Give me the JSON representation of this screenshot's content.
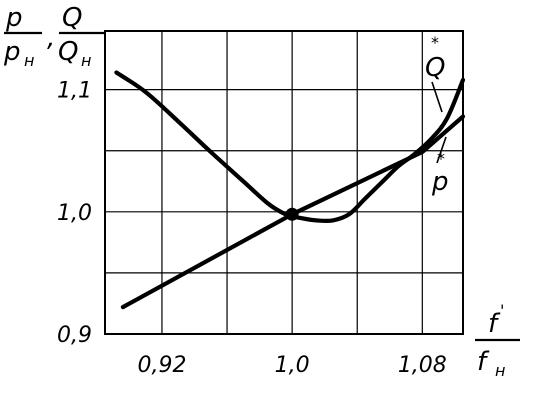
{
  "chart_data": {
    "type": "line",
    "title": "",
    "x": {
      "label_num": "f",
      "label_den_main": "f",
      "label_den_sub": "н",
      "range": [
        0.885,
        1.105
      ],
      "tick_values": [
        0.92,
        1.0,
        1.08
      ],
      "tick_labels": [
        "0,92",
        "1,0",
        "1,08"
      ],
      "gridlines": [
        0.92,
        0.96,
        1.0,
        1.04,
        1.08
      ]
    },
    "y": {
      "label_p_num": "p",
      "label_p_den_main": "p",
      "label_p_den_sub": "н",
      "separator": ",",
      "label_q_num": "Q",
      "label_q_den_main": "Q",
      "label_q_den_sub": "н",
      "range": [
        0.9,
        1.148
      ],
      "tick_values": [
        0.9,
        1.0,
        1.1
      ],
      "tick_labels": [
        "0,9",
        "1,0",
        "1,1"
      ],
      "gridlines": [
        0.9,
        0.95,
        1.0,
        1.05,
        1.1
      ]
    },
    "grid": true,
    "series": [
      {
        "label_main": "Q",
        "label_mark": "*",
        "shape": "curve",
        "points": [
          [
            0.892,
            1.114
          ],
          [
            0.91,
            1.098
          ],
          [
            0.93,
            1.074
          ],
          [
            0.95,
            1.049
          ],
          [
            0.97,
            1.025
          ],
          [
            0.985,
            1.007
          ],
          [
            0.996,
            0.998
          ],
          [
            1.005,
            0.995
          ],
          [
            1.015,
            0.993
          ],
          [
            1.025,
            0.993
          ],
          [
            1.035,
            0.998
          ],
          [
            1.045,
            1.011
          ],
          [
            1.055,
            1.024
          ],
          [
            1.065,
            1.037
          ],
          [
            1.075,
            1.047
          ],
          [
            1.085,
            1.059
          ],
          [
            1.095,
            1.076
          ],
          [
            1.105,
            1.108
          ]
        ]
      },
      {
        "label_main": "p",
        "label_mark": "*",
        "shape": "line",
        "points": [
          [
            0.896,
            0.922
          ],
          [
            1.0,
            0.998
          ],
          [
            1.08,
            1.049
          ],
          [
            1.105,
            1.078
          ]
        ]
      }
    ],
    "markers": [
      [
        1.0,
        0.998
      ]
    ]
  }
}
